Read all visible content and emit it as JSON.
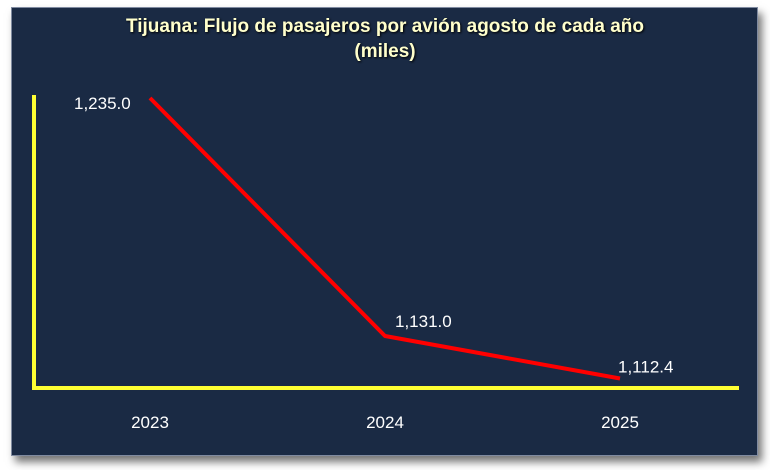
{
  "chart_data": {
    "type": "line",
    "title_line1": "Tijuana: Flujo de pasajeros por avión agosto de cada año",
    "title_line2": "(miles)",
    "categories": [
      "2023",
      "2024",
      "2025"
    ],
    "series": [
      {
        "values": [
          1235.0,
          1131.0,
          1112.4
        ],
        "labels": [
          "1,235.0",
          "1,131.0",
          "1,112.4"
        ],
        "color": "#ff0000"
      }
    ],
    "ylim": [
      1110,
      1235
    ],
    "axis_color": "#ffff33",
    "background_color": "#1a2a44",
    "grid": false,
    "legend": "none"
  }
}
